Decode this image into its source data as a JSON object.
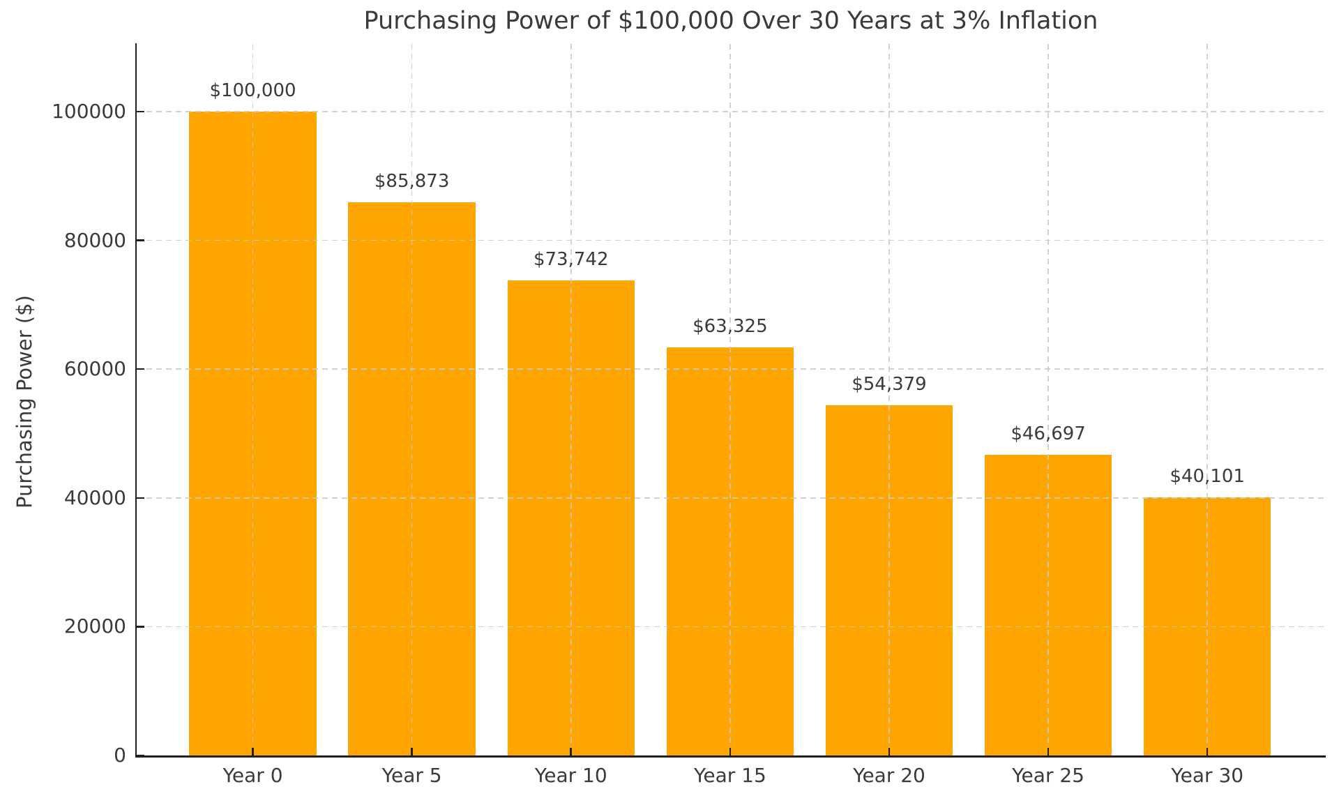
{
  "chart_data": {
    "type": "bar",
    "title": "Purchasing Power of $100,000 Over 30 Years at 3% Inflation",
    "xlabel": "",
    "ylabel": "Purchasing Power ($)",
    "categories": [
      "Year 0",
      "Year 5",
      "Year 10",
      "Year 15",
      "Year 20",
      "Year 25",
      "Year 30"
    ],
    "values": [
      100000,
      85873,
      73742,
      63325,
      54379,
      46697,
      40101
    ],
    "bar_labels": [
      "$100,000",
      "$85,873",
      "$73,742",
      "$63,325",
      "$54,379",
      "$46,697",
      "$40,101"
    ],
    "ylim": [
      0,
      110500
    ],
    "yticks": [
      0,
      20000,
      40000,
      60000,
      80000,
      100000
    ],
    "ytick_labels": [
      "0",
      "20000",
      "40000",
      "60000",
      "80000",
      "100000"
    ],
    "grid": "both-dashed",
    "grid_on": true,
    "legend": "none",
    "bar_color": "#FFA500",
    "grid_color": "#c9c9c9",
    "spine_color": "#1f1f1f",
    "text_color": "#3a3a3a",
    "background_color": "#ffffff"
  }
}
